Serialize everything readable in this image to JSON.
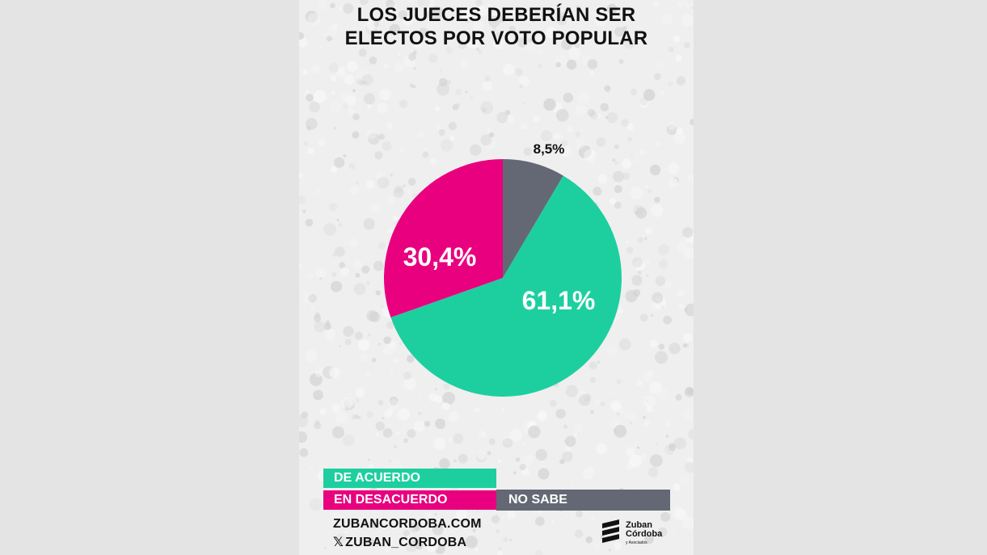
{
  "title_lines": [
    "LOS JUECES DEBERÍAN SER",
    "ELECTOS POR VOTO POPULAR"
  ],
  "chart_data": {
    "type": "pie",
    "title": "LOS JUECES DEBERÍAN SER ELECTOS POR VOTO POPULAR",
    "slices": [
      {
        "name": "NO SABE",
        "value": 8.5,
        "label": "8,5%",
        "color": "#636874"
      },
      {
        "name": "DE ACUERDO",
        "value": 61.1,
        "label": "61,1%",
        "color": "#1dcf9f"
      },
      {
        "name": "EN DESACUERDO",
        "value": 30.4,
        "label": "30,4%",
        "color": "#e8007f"
      }
    ]
  },
  "legend": {
    "agree": {
      "label": "DE ACUERDO",
      "color": "#1dcf9f"
    },
    "disagree": {
      "label": "EN DESACUERDO",
      "color": "#e8007f"
    },
    "unsure": {
      "label": "NO SABE",
      "color": "#636874"
    }
  },
  "footer": {
    "website": "ZUBANCORDOBA.COM",
    "x_handle": "ZUBAN_CORDOBA",
    "x_icon": "x-logo-icon"
  },
  "logo": {
    "line1": "Zuban",
    "line2": "Córdoba",
    "line3": "y Asociados"
  }
}
